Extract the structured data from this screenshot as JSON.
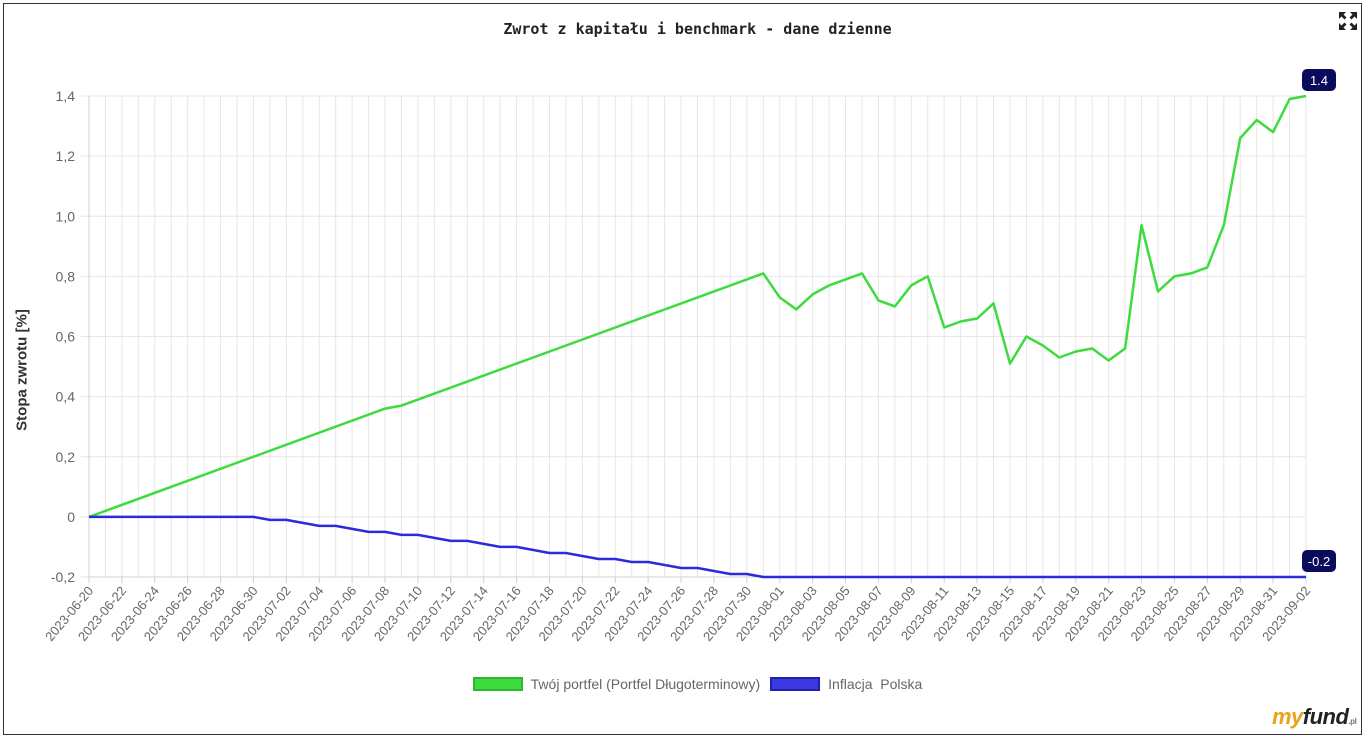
{
  "chart_data": {
    "type": "line",
    "title": "Zwrot z kapitału i benchmark - dane dzienne",
    "ylabel": "Stopa zwrotu [%]",
    "xlabel": "",
    "ylim": [
      -0.2,
      1.4
    ],
    "yticks": [
      -0.2,
      0,
      0.2,
      0.4,
      0.6,
      0.8,
      1.0,
      1.2,
      1.4
    ],
    "ytick_labels": [
      "-0,2",
      "0",
      "0,2",
      "0,4",
      "0,6",
      "0,8",
      "1,0",
      "1,2",
      "1,4"
    ],
    "xlim": [
      "2023-06-20",
      "2023-09-02"
    ],
    "xtick_labels": [
      "2023-06-20",
      "2023-06-22",
      "2023-06-24",
      "2023-06-26",
      "2023-06-28",
      "2023-06-30",
      "2023-07-02",
      "2023-07-04",
      "2023-07-06",
      "2023-07-08",
      "2023-07-10",
      "2023-07-12",
      "2023-07-14",
      "2023-07-16",
      "2023-07-18",
      "2023-07-20",
      "2023-07-22",
      "2023-07-24",
      "2023-07-26",
      "2023-07-28",
      "2023-07-30",
      "2023-08-01",
      "2023-08-03",
      "2023-08-05",
      "2023-08-07",
      "2023-08-09",
      "2023-08-11",
      "2023-08-13",
      "2023-08-15",
      "2023-08-17",
      "2023-08-19",
      "2023-08-21",
      "2023-08-23",
      "2023-08-25",
      "2023-08-27",
      "2023-08-29",
      "2023-08-31",
      "2023-09-02"
    ],
    "grid": true,
    "legend_position": "bottom-center",
    "series": [
      {
        "name": "Twój portfel (Portfel Długoterminowy)",
        "color": "#3ddc3d",
        "points": [
          [
            "2023-06-20",
            0
          ],
          [
            "2023-07-08",
            0.36
          ],
          [
            "2023-07-09",
            0.37
          ],
          [
            "2023-07-31",
            0.81
          ],
          [
            "2023-08-01",
            0.73
          ],
          [
            "2023-08-02",
            0.69
          ],
          [
            "2023-08-03",
            0.74
          ],
          [
            "2023-08-04",
            0.77
          ],
          [
            "2023-08-06",
            0.81
          ],
          [
            "2023-08-07",
            0.72
          ],
          [
            "2023-08-08",
            0.7
          ],
          [
            "2023-08-09",
            0.77
          ],
          [
            "2023-08-10",
            0.8
          ],
          [
            "2023-08-11",
            0.63
          ],
          [
            "2023-08-12",
            0.65
          ],
          [
            "2023-08-13",
            0.66
          ],
          [
            "2023-08-14",
            0.71
          ],
          [
            "2023-08-15",
            0.51
          ],
          [
            "2023-08-16",
            0.6
          ],
          [
            "2023-08-17",
            0.57
          ],
          [
            "2023-08-18",
            0.53
          ],
          [
            "2023-08-19",
            0.55
          ],
          [
            "2023-08-20",
            0.56
          ],
          [
            "2023-08-21",
            0.52
          ],
          [
            "2023-08-22",
            0.56
          ],
          [
            "2023-08-23",
            0.97
          ],
          [
            "2023-08-24",
            0.75
          ],
          [
            "2023-08-25",
            0.8
          ],
          [
            "2023-08-26",
            0.81
          ],
          [
            "2023-08-27",
            0.83
          ],
          [
            "2023-08-28",
            0.97
          ],
          [
            "2023-08-29",
            1.26
          ],
          [
            "2023-08-30",
            1.32
          ],
          [
            "2023-08-31",
            1.28
          ],
          [
            "2023-09-01",
            1.39
          ],
          [
            "2023-09-02",
            1.4
          ]
        ],
        "last_label": "1.4"
      },
      {
        "name": "Inflacja  Polska",
        "color": "#2b2bdc",
        "points": [
          [
            "2023-06-20",
            0
          ],
          [
            "2023-06-30",
            0
          ],
          [
            "2023-07-01",
            -0.01
          ],
          [
            "2023-07-02",
            -0.01
          ],
          [
            "2023-07-04",
            -0.03
          ],
          [
            "2023-07-05",
            -0.03
          ],
          [
            "2023-07-07",
            -0.05
          ],
          [
            "2023-07-08",
            -0.05
          ],
          [
            "2023-07-09",
            -0.06
          ],
          [
            "2023-07-10",
            -0.06
          ],
          [
            "2023-07-12",
            -0.08
          ],
          [
            "2023-07-13",
            -0.08
          ],
          [
            "2023-07-15",
            -0.1
          ],
          [
            "2023-07-16",
            -0.1
          ],
          [
            "2023-07-18",
            -0.12
          ],
          [
            "2023-07-19",
            -0.12
          ],
          [
            "2023-07-21",
            -0.14
          ],
          [
            "2023-07-22",
            -0.14
          ],
          [
            "2023-07-23",
            -0.15
          ],
          [
            "2023-07-24",
            -0.15
          ],
          [
            "2023-07-26",
            -0.17
          ],
          [
            "2023-07-27",
            -0.17
          ],
          [
            "2023-07-29",
            -0.19
          ],
          [
            "2023-07-30",
            -0.19
          ],
          [
            "2023-07-31",
            -0.2
          ],
          [
            "2023-09-02",
            -0.2
          ]
        ],
        "last_label": "-0.2"
      }
    ]
  },
  "logo": {
    "my": "my",
    "fund": "fund",
    "pl": ".pl"
  }
}
